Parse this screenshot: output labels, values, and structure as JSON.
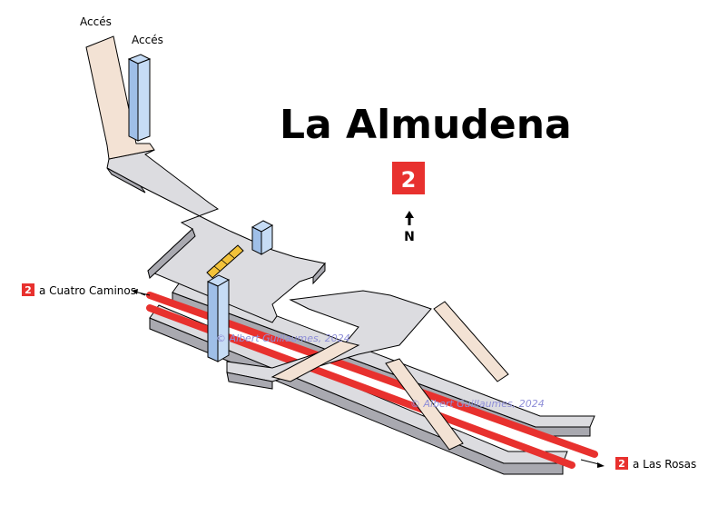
{
  "station": {
    "name": "La Almudena",
    "line_number": "2"
  },
  "colors": {
    "line_red": "#e8312e",
    "platform_top": "#dcdce0",
    "platform_side": "#a9a9b0",
    "corridor": "#f3e2d4",
    "access_blue": "#c6dcf5",
    "stair_yellow": "#f2c23a",
    "outline": "#000000"
  },
  "access_labels": [
    "Accés",
    "Accés"
  ],
  "compass": {
    "label": "N",
    "icon": "north-arrow-icon"
  },
  "directions": [
    {
      "line": "2",
      "text": "a Cuatro Caminos"
    },
    {
      "line": "2",
      "text": "a Las Rosas"
    }
  ],
  "watermarks": [
    "© Albert Guillaumes, 2024",
    "© Albert Guillaumes, 2024"
  ]
}
